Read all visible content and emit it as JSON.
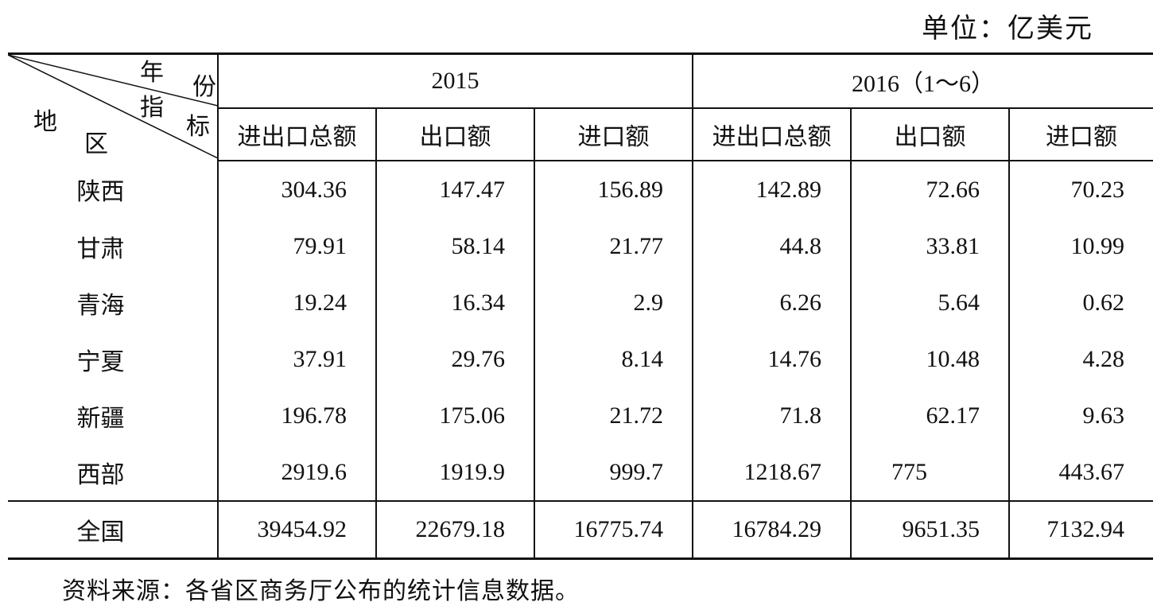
{
  "unit": "单位：亿美元",
  "corner": {
    "year": [
      "年",
      "份"
    ],
    "indicator": [
      "指",
      "标"
    ],
    "region": [
      "地",
      "区"
    ]
  },
  "years": [
    "2015",
    "2016（1～6）"
  ],
  "columns": [
    "进出口总额",
    "出口额",
    "进口额",
    "进出口总额",
    "出口额",
    "进口额"
  ],
  "rows": [
    {
      "region": "陕西",
      "values": [
        "304.36",
        "147.47",
        "156.89",
        "142.89",
        "72.66",
        "70.23"
      ]
    },
    {
      "region": "甘肃",
      "values": [
        "79.91",
        "58.14",
        "21.77",
        "44.8",
        "33.81",
        "10.99"
      ]
    },
    {
      "region": "青海",
      "values": [
        "19.24",
        "16.34",
        "2.9",
        "6.26",
        "5.64",
        "0.62"
      ]
    },
    {
      "region": "宁夏",
      "values": [
        "37.91",
        "29.76",
        "8.14",
        "14.76",
        "10.48",
        "4.28"
      ]
    },
    {
      "region": "新疆",
      "values": [
        "196.78",
        "175.06",
        "21.72",
        "71.8",
        "62.17",
        "9.63"
      ]
    },
    {
      "region": "西部",
      "values": [
        "2919.6",
        "1919.9",
        "999.7",
        "1218.67",
        "775",
        "443.67"
      ]
    }
  ],
  "total": {
    "region": "全国",
    "values": [
      "39454.92",
      "22679.18",
      "16775.74",
      "16784.29",
      "9651.35",
      "7132.94"
    ]
  },
  "source": "资料来源：各省区商务厅公布的统计信息数据。"
}
